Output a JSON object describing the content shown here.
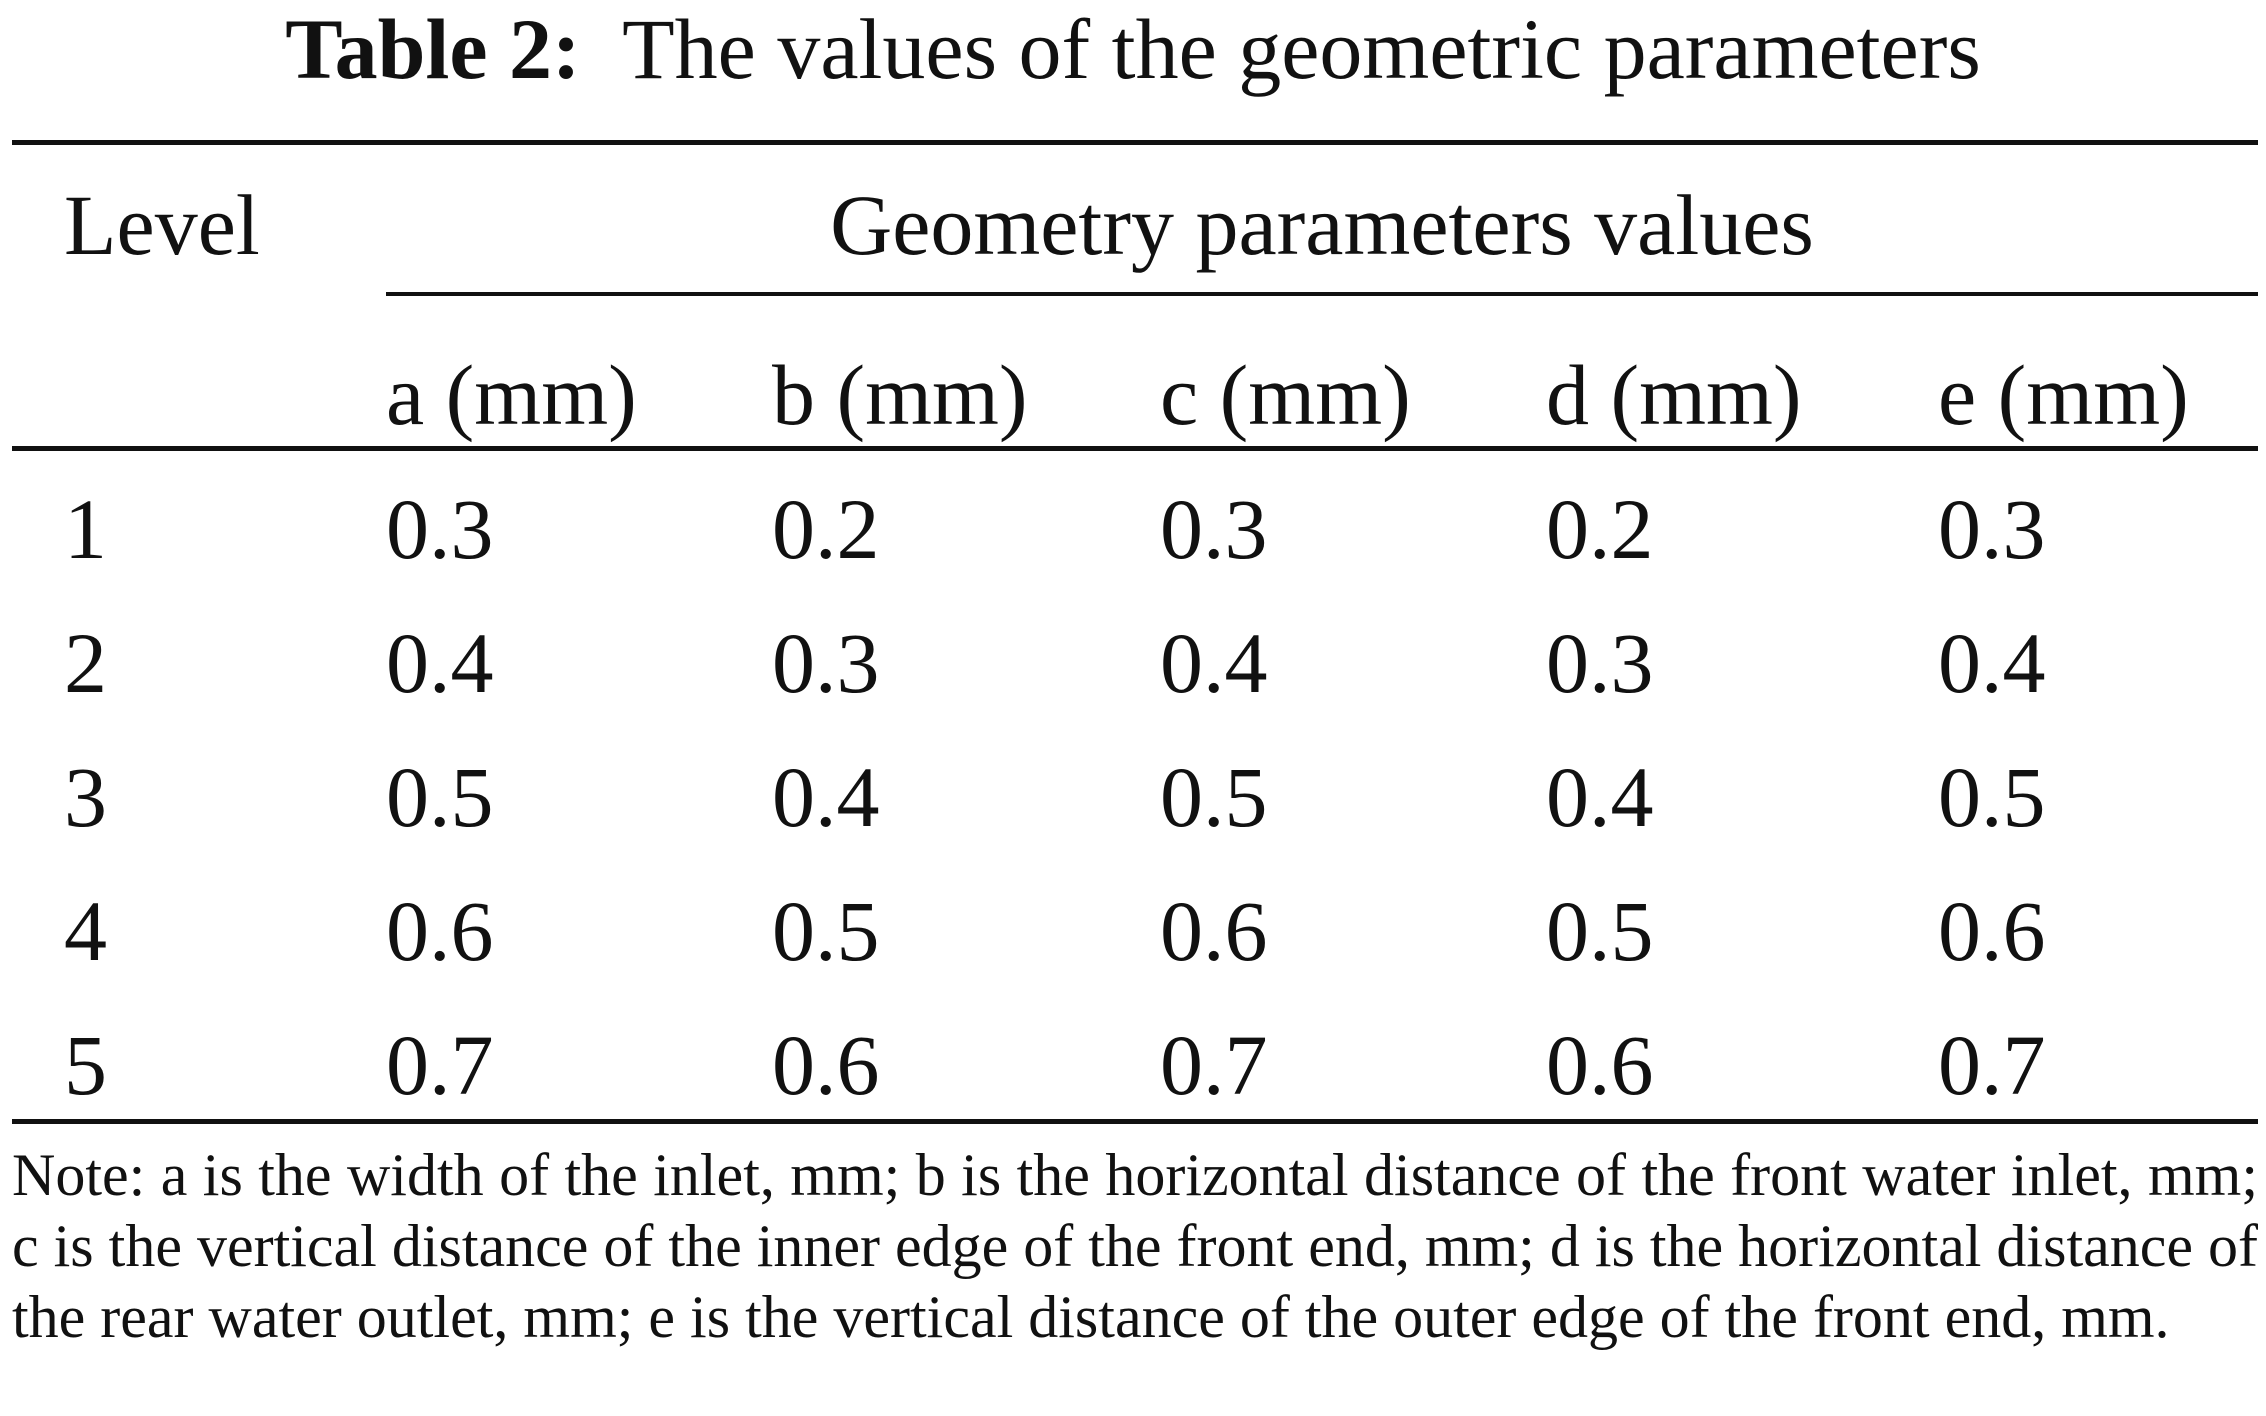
{
  "caption": {
    "label": "Table 2:",
    "text": "The values of the geometric parameters"
  },
  "table": {
    "stub_header": "Level",
    "group_header": "Geometry parameters values",
    "columns": [
      "a (mm)",
      "b (mm)",
      "c (mm)",
      "d (mm)",
      "e (mm)"
    ],
    "rows": [
      {
        "level": "1",
        "values": [
          "0.3",
          "0.2",
          "0.3",
          "0.2",
          "0.3"
        ]
      },
      {
        "level": "2",
        "values": [
          "0.4",
          "0.3",
          "0.4",
          "0.3",
          "0.4"
        ]
      },
      {
        "level": "3",
        "values": [
          "0.5",
          "0.4",
          "0.5",
          "0.4",
          "0.5"
        ]
      },
      {
        "level": "4",
        "values": [
          "0.6",
          "0.5",
          "0.6",
          "0.5",
          "0.6"
        ]
      },
      {
        "level": "5",
        "values": [
          "0.7",
          "0.6",
          "0.7",
          "0.6",
          "0.7"
        ]
      }
    ]
  },
  "note": "Note: a is the width of the inlet, mm; b is the horizontal distance of the front water inlet, mm; c is the vertical distance of the inner edge of the front end, mm; d is the horizontal distance of the rear water outlet, mm; e is the vertical distance of the outer edge of the front end, mm."
}
